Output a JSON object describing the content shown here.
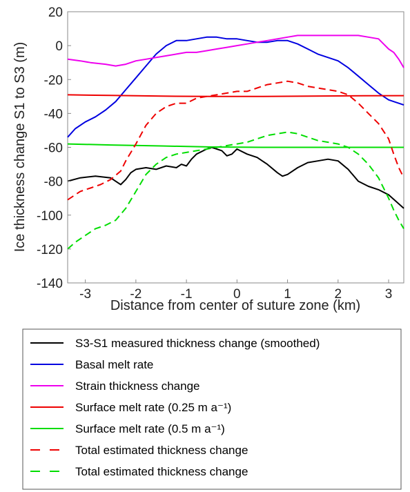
{
  "chart_data": {
    "type": "line",
    "xlabel": "Distance from center of suture zone (km)",
    "ylabel": "Ice thickness change S1 to S3 (m)",
    "xlim": [
      -3.35,
      3.3
    ],
    "ylim": [
      -140,
      20
    ],
    "xticks": [
      -3,
      -2,
      -1,
      0,
      1,
      2,
      3
    ],
    "yticks": [
      20,
      0,
      -20,
      -40,
      -60,
      -80,
      -100,
      -120,
      -140
    ],
    "grid": false,
    "legend_position": "below",
    "series": [
      {
        "name": "S3-S1 measured thickness change (smoothed)",
        "color": "#000000",
        "dash": "solid",
        "x": [
          -3.35,
          -3.1,
          -2.8,
          -2.5,
          -2.35,
          -2.3,
          -2.2,
          -2.1,
          -2.0,
          -1.8,
          -1.6,
          -1.4,
          -1.2,
          -1.1,
          -1.0,
          -0.9,
          -0.8,
          -0.6,
          -0.5,
          -0.3,
          -0.2,
          -0.1,
          0.0,
          0.2,
          0.4,
          0.6,
          0.8,
          0.9,
          1.0,
          1.2,
          1.4,
          1.6,
          1.8,
          2.0,
          2.2,
          2.4,
          2.6,
          2.8,
          3.0,
          3.3
        ],
        "y": [
          -80,
          -78,
          -77,
          -78,
          -81,
          -82,
          -79,
          -75,
          -73,
          -72,
          -73,
          -71,
          -72,
          -70,
          -71,
          -67,
          -64,
          -61,
          -60,
          -62,
          -65,
          -64,
          -61,
          -64,
          -66,
          -70,
          -75,
          -77,
          -76,
          -72,
          -69,
          -68,
          -67,
          -68,
          -73,
          -80,
          -83,
          -85,
          -88,
          -96
        ]
      },
      {
        "name": "Basal melt rate",
        "color": "#0000e0",
        "dash": "solid",
        "x": [
          -3.35,
          -3.2,
          -3.0,
          -2.8,
          -2.6,
          -2.4,
          -2.2,
          -2.0,
          -1.8,
          -1.6,
          -1.4,
          -1.2,
          -1.0,
          -0.8,
          -0.6,
          -0.4,
          -0.2,
          0.0,
          0.2,
          0.4,
          0.6,
          0.8,
          1.0,
          1.2,
          1.4,
          1.6,
          1.8,
          2.0,
          2.2,
          2.4,
          2.6,
          2.8,
          3.0,
          3.1,
          3.3
        ],
        "y": [
          -54,
          -49,
          -45,
          -42,
          -38,
          -33,
          -26,
          -19,
          -12,
          -5,
          0,
          3,
          3,
          4,
          5,
          5,
          4,
          4,
          3,
          2,
          2,
          3,
          3,
          1,
          -2,
          -5,
          -7,
          -9,
          -13,
          -18,
          -23,
          -28,
          -32,
          -33,
          -35
        ]
      },
      {
        "name": "Strain thickness change",
        "color": "#ee00ee",
        "dash": "solid",
        "x": [
          -3.35,
          -3.1,
          -2.9,
          -2.6,
          -2.4,
          -2.2,
          -2.0,
          -1.8,
          -1.6,
          -1.4,
          -1.2,
          -1.0,
          -0.8,
          -0.6,
          -0.4,
          -0.2,
          0.0,
          0.2,
          0.4,
          0.6,
          0.8,
          1.0,
          1.2,
          1.4,
          1.6,
          1.8,
          2.0,
          2.2,
          2.4,
          2.6,
          2.8,
          2.9,
          3.0,
          3.1,
          3.2,
          3.3
        ],
        "y": [
          -8,
          -9,
          -10,
          -11,
          -12,
          -11,
          -9,
          -8,
          -7,
          -6,
          -5,
          -4,
          -4,
          -3,
          -2,
          -1,
          0,
          1,
          2,
          3,
          4,
          5,
          6,
          6,
          6,
          6,
          6,
          6,
          6,
          5,
          4,
          1,
          -2,
          -4,
          -8,
          -13
        ]
      },
      {
        "name": "Surface melt rate (0.25 m a⁻¹)",
        "color": "#ee0000",
        "dash": "solid",
        "x": [
          -3.35,
          -2.5,
          -1.5,
          -0.5,
          0.5,
          1.5,
          2.5,
          3.3
        ],
        "y": [
          -29,
          -29.4,
          -29.8,
          -30,
          -30,
          -29.8,
          -29.6,
          -29.5
        ]
      },
      {
        "name": "Surface melt rate (0.5 m a⁻¹)",
        "color": "#00dd00",
        "dash": "solid",
        "x": [
          -3.35,
          -2.5,
          -1.5,
          -0.5,
          0.5,
          1.5,
          2.5,
          3.3
        ],
        "y": [
          -58,
          -58.6,
          -59.2,
          -59.8,
          -60,
          -60,
          -60,
          -60
        ]
      },
      {
        "name": "Total estimated thickness change",
        "color": "#ee0000",
        "dash": "dashed",
        "x": [
          -3.35,
          -3.1,
          -2.9,
          -2.7,
          -2.5,
          -2.3,
          -2.2,
          -2.0,
          -1.8,
          -1.6,
          -1.4,
          -1.2,
          -1.0,
          -0.8,
          -0.6,
          -0.4,
          -0.2,
          0.0,
          0.2,
          0.4,
          0.6,
          0.8,
          1.0,
          1.2,
          1.4,
          1.6,
          1.8,
          2.0,
          2.2,
          2.4,
          2.6,
          2.8,
          3.0,
          3.1,
          3.2,
          3.3
        ],
        "y": [
          -91,
          -86,
          -84,
          -82,
          -79,
          -74,
          -68,
          -58,
          -47,
          -40,
          -36,
          -34,
          -34,
          -31,
          -30,
          -29,
          -28,
          -27,
          -27,
          -25,
          -23,
          -22,
          -21,
          -22,
          -24,
          -25,
          -26,
          -27,
          -29,
          -34,
          -40,
          -46,
          -55,
          -64,
          -72,
          -78
        ]
      },
      {
        "name": "Total estimated thickness change",
        "color": "#00dd00",
        "dash": "dashed",
        "x": [
          -3.35,
          -3.2,
          -3.0,
          -2.8,
          -2.6,
          -2.4,
          -2.2,
          -2.0,
          -1.8,
          -1.6,
          -1.4,
          -1.2,
          -1.0,
          -0.8,
          -0.6,
          -0.4,
          -0.2,
          0.0,
          0.2,
          0.4,
          0.6,
          0.8,
          1.0,
          1.2,
          1.4,
          1.6,
          1.8,
          2.0,
          2.2,
          2.4,
          2.6,
          2.8,
          3.0,
          3.1,
          3.2,
          3.3
        ],
        "y": [
          -120,
          -116,
          -112,
          -108,
          -106,
          -103,
          -96,
          -86,
          -76,
          -70,
          -66,
          -64,
          -63,
          -62,
          -61,
          -60,
          -59,
          -58,
          -57,
          -55,
          -53,
          -52,
          -51,
          -52,
          -54,
          -56,
          -57,
          -58,
          -60,
          -64,
          -70,
          -78,
          -90,
          -97,
          -103,
          -108
        ]
      }
    ]
  }
}
